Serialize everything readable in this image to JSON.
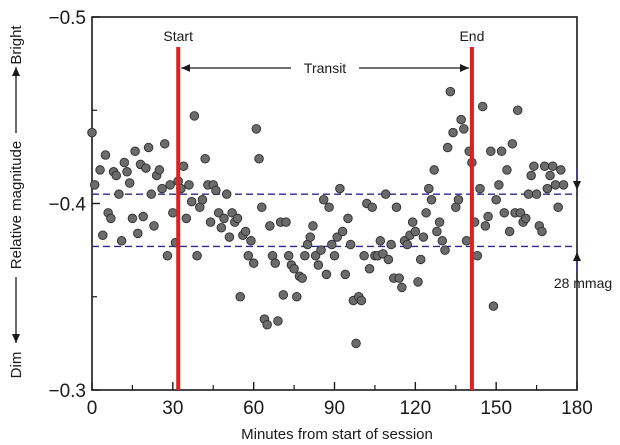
{
  "chart_data": {
    "type": "scatter",
    "title": "",
    "xlabel": "Minutes from start of session",
    "ylabel": "Relative magnitude",
    "xlim": [
      0,
      180
    ],
    "ylim": [
      -0.5,
      -0.3
    ],
    "y_reversed_display": true,
    "xticks": [
      0,
      30,
      60,
      90,
      120,
      150,
      180
    ],
    "xtick_labels": [
      "0",
      "30",
      "60",
      "90",
      "120",
      "150",
      "180"
    ],
    "yticks": [
      -0.5,
      -0.4,
      -0.3
    ],
    "ytick_labels": [
      "−0.5",
      "−0.4",
      "−0.3"
    ],
    "side_labels": {
      "bright": "Bright",
      "dim": "Dim"
    },
    "transit_markers": [
      {
        "label": "Start",
        "x": 32,
        "color": "#e02020"
      },
      {
        "label": "End",
        "x": 141,
        "color": "#e02020"
      }
    ],
    "transit_label": "Transit",
    "reference_levels": [
      {
        "name": "out-of-transit",
        "y": -0.405,
        "color": "#2a2a8a"
      },
      {
        "name": "in-transit",
        "y": -0.377,
        "color": "#2a2a8a"
      }
    ],
    "depth_annotation": "28 mmag",
    "point_color": "#6b6b6b",
    "series": [
      {
        "name": "observations",
        "points": [
          [
            0,
            -0.438
          ],
          [
            1,
            -0.41
          ],
          [
            3,
            -0.418
          ],
          [
            4,
            -0.383
          ],
          [
            5,
            -0.426
          ],
          [
            6,
            -0.395
          ],
          [
            7,
            -0.392
          ],
          [
            8,
            -0.417
          ],
          [
            9,
            -0.415
          ],
          [
            10,
            -0.405
          ],
          [
            11,
            -0.38
          ],
          [
            12,
            -0.422
          ],
          [
            13,
            -0.417
          ],
          [
            14,
            -0.411
          ],
          [
            15,
            -0.392
          ],
          [
            16,
            -0.428
          ],
          [
            17,
            -0.384
          ],
          [
            18,
            -0.421
          ],
          [
            19,
            -0.393
          ],
          [
            20,
            -0.419
          ],
          [
            21,
            -0.43
          ],
          [
            22,
            -0.405
          ],
          [
            23,
            -0.388
          ],
          [
            24,
            -0.415
          ],
          [
            25,
            -0.418
          ],
          [
            26,
            -0.408
          ],
          [
            27,
            -0.432
          ],
          [
            28,
            -0.372
          ],
          [
            29,
            -0.41
          ],
          [
            30,
            -0.395
          ],
          [
            31,
            -0.379
          ],
          [
            32,
            -0.412
          ],
          [
            33,
            -0.408
          ],
          [
            34,
            -0.42
          ],
          [
            35,
            -0.392
          ],
          [
            36,
            -0.41
          ],
          [
            37,
            -0.401
          ],
          [
            38,
            -0.447
          ],
          [
            39,
            -0.372
          ],
          [
            40,
            -0.398
          ],
          [
            41,
            -0.402
          ],
          [
            42,
            -0.424
          ],
          [
            43,
            -0.41
          ],
          [
            44,
            -0.39
          ],
          [
            45,
            -0.41
          ],
          [
            46,
            -0.407
          ],
          [
            47,
            -0.395
          ],
          [
            48,
            -0.387
          ],
          [
            49,
            -0.392
          ],
          [
            50,
            -0.405
          ],
          [
            51,
            -0.382
          ],
          [
            52,
            -0.395
          ],
          [
            53,
            -0.39
          ],
          [
            54,
            -0.392
          ],
          [
            55,
            -0.35
          ],
          [
            56,
            -0.383
          ],
          [
            57,
            -0.385
          ],
          [
            58,
            -0.372
          ],
          [
            59,
            -0.38
          ],
          [
            60,
            -0.368
          ],
          [
            61,
            -0.44
          ],
          [
            62,
            -0.424
          ],
          [
            63,
            -0.398
          ],
          [
            64,
            -0.338
          ],
          [
            65,
            -0.335
          ],
          [
            66,
            -0.388
          ],
          [
            67,
            -0.372
          ],
          [
            68,
            -0.368
          ],
          [
            69,
            -0.337
          ],
          [
            70,
            -0.39
          ],
          [
            71,
            -0.351
          ],
          [
            72,
            -0.39
          ],
          [
            73,
            -0.372
          ],
          [
            74,
            -0.367
          ],
          [
            75,
            -0.365
          ],
          [
            76,
            -0.35
          ],
          [
            77,
            -0.361
          ],
          [
            78,
            -0.36
          ],
          [
            79,
            -0.372
          ],
          [
            80,
            -0.378
          ],
          [
            81,
            -0.382
          ],
          [
            82,
            -0.388
          ],
          [
            83,
            -0.372
          ],
          [
            84,
            -0.367
          ],
          [
            85,
            -0.375
          ],
          [
            86,
            -0.402
          ],
          [
            87,
            -0.362
          ],
          [
            88,
            -0.398
          ],
          [
            89,
            -0.378
          ],
          [
            90,
            -0.372
          ],
          [
            91,
            -0.382
          ],
          [
            92,
            -0.408
          ],
          [
            93,
            -0.385
          ],
          [
            94,
            -0.362
          ],
          [
            95,
            -0.392
          ],
          [
            96,
            -0.378
          ],
          [
            97,
            -0.348
          ],
          [
            98,
            -0.325
          ],
          [
            99,
            -0.35
          ],
          [
            100,
            -0.348
          ],
          [
            101,
            -0.372
          ],
          [
            102,
            -0.4
          ],
          [
            103,
            -0.365
          ],
          [
            104,
            -0.398
          ],
          [
            105,
            -0.372
          ],
          [
            106,
            -0.372
          ],
          [
            107,
            -0.38
          ],
          [
            108,
            -0.373
          ],
          [
            109,
            -0.405
          ],
          [
            110,
            -0.37
          ],
          [
            111,
            -0.378
          ],
          [
            112,
            -0.36
          ],
          [
            113,
            -0.398
          ],
          [
            114,
            -0.36
          ],
          [
            115,
            -0.355
          ],
          [
            116,
            -0.38
          ],
          [
            117,
            -0.378
          ],
          [
            118,
            -0.383
          ],
          [
            119,
            -0.39
          ],
          [
            120,
            -0.385
          ],
          [
            121,
            -0.358
          ],
          [
            122,
            -0.37
          ],
          [
            123,
            -0.382
          ],
          [
            124,
            -0.395
          ],
          [
            125,
            -0.408
          ],
          [
            126,
            -0.402
          ],
          [
            127,
            -0.418
          ],
          [
            128,
            -0.385
          ],
          [
            129,
            -0.39
          ],
          [
            130,
            -0.38
          ],
          [
            131,
            -0.375
          ],
          [
            132,
            -0.43
          ],
          [
            133,
            -0.46
          ],
          [
            134,
            -0.438
          ],
          [
            135,
            -0.398
          ],
          [
            136,
            -0.402
          ],
          [
            137,
            -0.445
          ],
          [
            138,
            -0.44
          ],
          [
            139,
            -0.38
          ],
          [
            140,
            -0.428
          ],
          [
            141,
            -0.422
          ],
          [
            142,
            -0.39
          ],
          [
            143,
            -0.372
          ],
          [
            144,
            -0.408
          ],
          [
            145,
            -0.452
          ],
          [
            146,
            -0.388
          ],
          [
            147,
            -0.393
          ],
          [
            148,
            -0.428
          ],
          [
            149,
            -0.345
          ],
          [
            150,
            -0.402
          ],
          [
            151,
            -0.41
          ],
          [
            152,
            -0.428
          ],
          [
            153,
            -0.395
          ],
          [
            154,
            -0.418
          ],
          [
            155,
            -0.385
          ],
          [
            156,
            -0.432
          ],
          [
            157,
            -0.395
          ],
          [
            158,
            -0.45
          ],
          [
            159,
            -0.395
          ],
          [
            160,
            -0.39
          ],
          [
            161,
            -0.392
          ],
          [
            162,
            -0.405
          ],
          [
            163,
            -0.415
          ],
          [
            164,
            -0.42
          ],
          [
            165,
            -0.405
          ],
          [
            166,
            -0.388
          ],
          [
            167,
            -0.385
          ],
          [
            168,
            -0.42
          ],
          [
            169,
            -0.408
          ],
          [
            170,
            -0.415
          ],
          [
            171,
            -0.42
          ],
          [
            172,
            -0.41
          ],
          [
            173,
            -0.398
          ],
          [
            174,
            -0.418
          ],
          [
            175,
            -0.41
          ]
        ]
      }
    ]
  }
}
